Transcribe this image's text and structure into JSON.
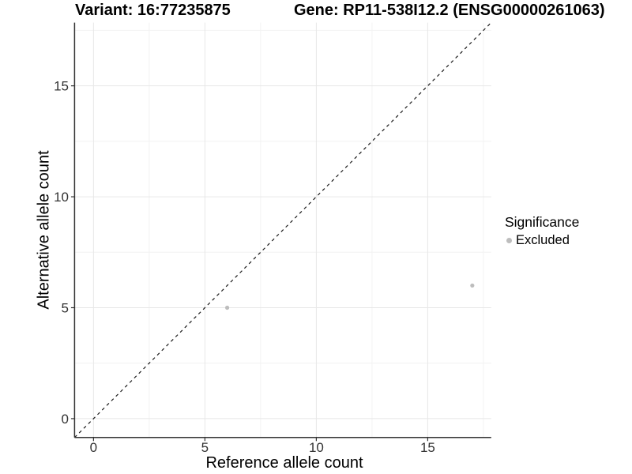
{
  "chart_data": {
    "type": "scatter",
    "title_left": "Variant: 16:77235875",
    "title_right": "Gene: RP11-538I12.2 (ENSG00000261063)",
    "xlabel": "Reference allele count",
    "ylabel": "Alternative allele count",
    "xlim": [
      -0.85,
      17.85
    ],
    "ylim": [
      -0.85,
      17.85
    ],
    "x_ticks": [
      0,
      5,
      10,
      15
    ],
    "y_ticks": [
      0,
      5,
      10,
      15
    ],
    "x_minor_ticks": [
      2.5,
      7.5,
      12.5,
      17.5
    ],
    "y_minor_ticks": [
      2.5,
      7.5,
      12.5,
      17.5
    ],
    "grid": true,
    "points": [
      {
        "x": 6,
        "y": 5,
        "series": "Excluded"
      },
      {
        "x": 17,
        "y": 6,
        "series": "Excluded"
      }
    ],
    "identity_line": {
      "slope": 1,
      "intercept": 0,
      "style": "dashed",
      "color": "#1a1a1a"
    },
    "colors": {
      "point": "#bdbdbd",
      "grid_major": "#e7e7e7",
      "grid_minor": "#f2f2f2",
      "axis_line": "#333333",
      "tick_label": "#333333"
    },
    "legend": {
      "title": "Significance",
      "position": "right",
      "items": [
        {
          "label": "Excluded",
          "color": "#bdbdbd"
        }
      ]
    }
  }
}
